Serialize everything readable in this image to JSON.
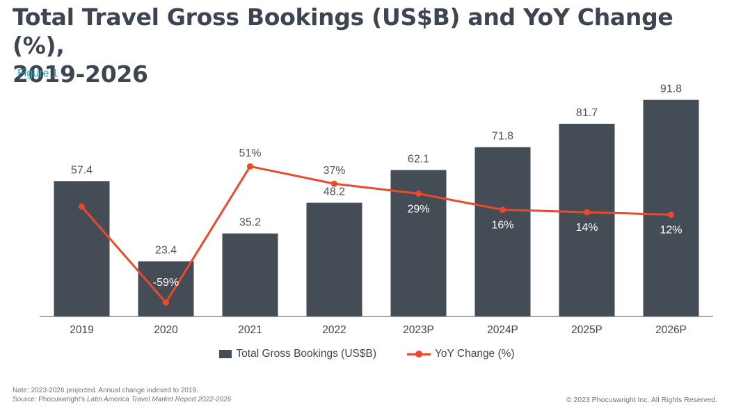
{
  "title_line1": "Total Travel Gross Bookings (US$B) and YoY Change (%),",
  "title_line2": "2019-2026",
  "figure_label": "Figure 1",
  "chart_data": {
    "type": "bar",
    "categories": [
      "2019",
      "2020",
      "2021",
      "2022",
      "2023P",
      "2024P",
      "2025P",
      "2026P"
    ],
    "series": [
      {
        "name": "Total Gross Bookings (US$B)",
        "type": "bar",
        "values": [
          57.4,
          23.4,
          35.2,
          48.2,
          62.1,
          71.8,
          81.7,
          91.8
        ],
        "labels": [
          "57.4",
          "23.4",
          "35.2",
          "48.2",
          "62.1",
          "71.8",
          "81.7",
          "91.8"
        ]
      },
      {
        "name": "YoY Change (%)",
        "type": "line",
        "values": [
          null,
          -59,
          51,
          37,
          29,
          16,
          14,
          12
        ],
        "labels": [
          "",
          "-59%",
          "51%",
          "37%",
          "29%",
          "16%",
          "14%",
          "12%"
        ]
      }
    ],
    "ylim": [
      0,
      92
    ],
    "legend_position": "bottom"
  },
  "legend": {
    "bar_label": "Total Gross Bookings (US$B)",
    "line_label": "YoY Change (%)"
  },
  "note_line1": "Note: 2023-2026 projected. Annual change indexed to 2019.",
  "source_prefix": "Source: Phocuswright's ",
  "source_title": "Latin America Travel Market Report 2022-2026",
  "copyright": "© 2023 Phocuswright Inc. All Rights Reserved.",
  "colors": {
    "bar": "#444c55",
    "line": "#ea4a2a",
    "accent": "#1eb0c8",
    "title": "#3d4650"
  }
}
